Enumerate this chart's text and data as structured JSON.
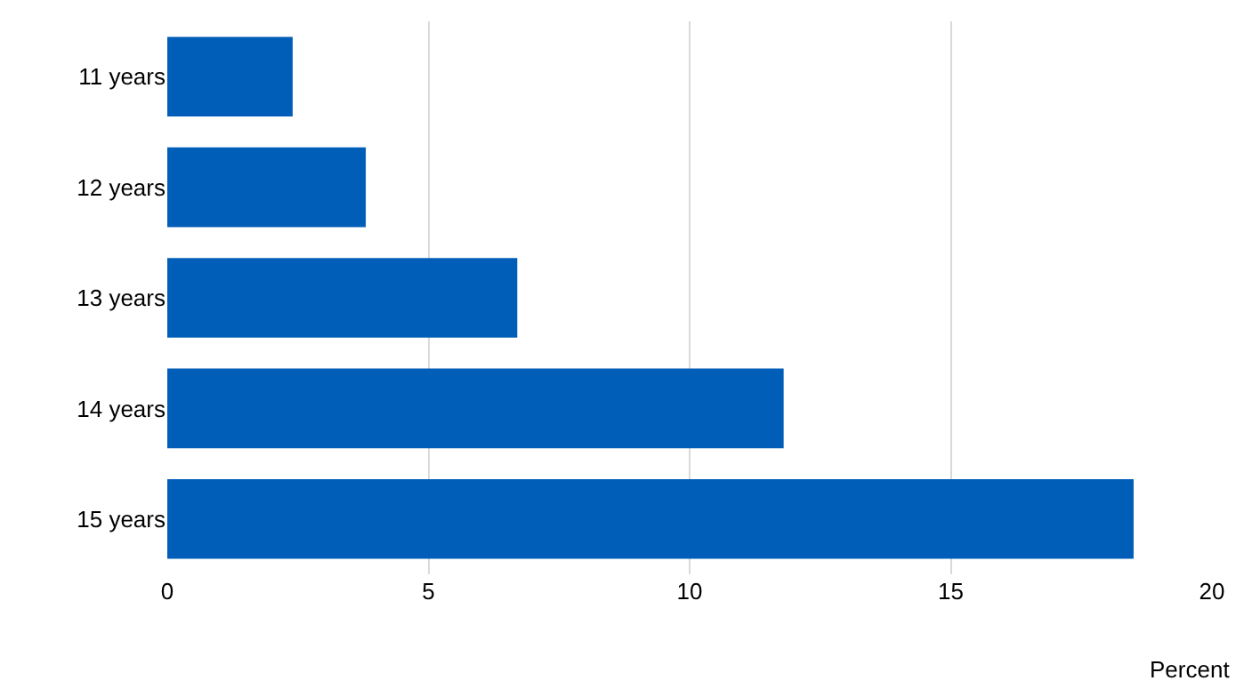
{
  "chart_data": {
    "type": "bar",
    "orientation": "horizontal",
    "xlabel": "Percent",
    "categories": [
      "11 years",
      "12 years",
      "13 years",
      "14 years",
      "15 years"
    ],
    "values": [
      2.4,
      3.8,
      6.7,
      11.8,
      18.5
    ],
    "color": "#005eb8",
    "xlim": [
      0,
      20
    ],
    "xticks": [
      0,
      5,
      10,
      15,
      20
    ],
    "grid": "x",
    "legend": false
  }
}
